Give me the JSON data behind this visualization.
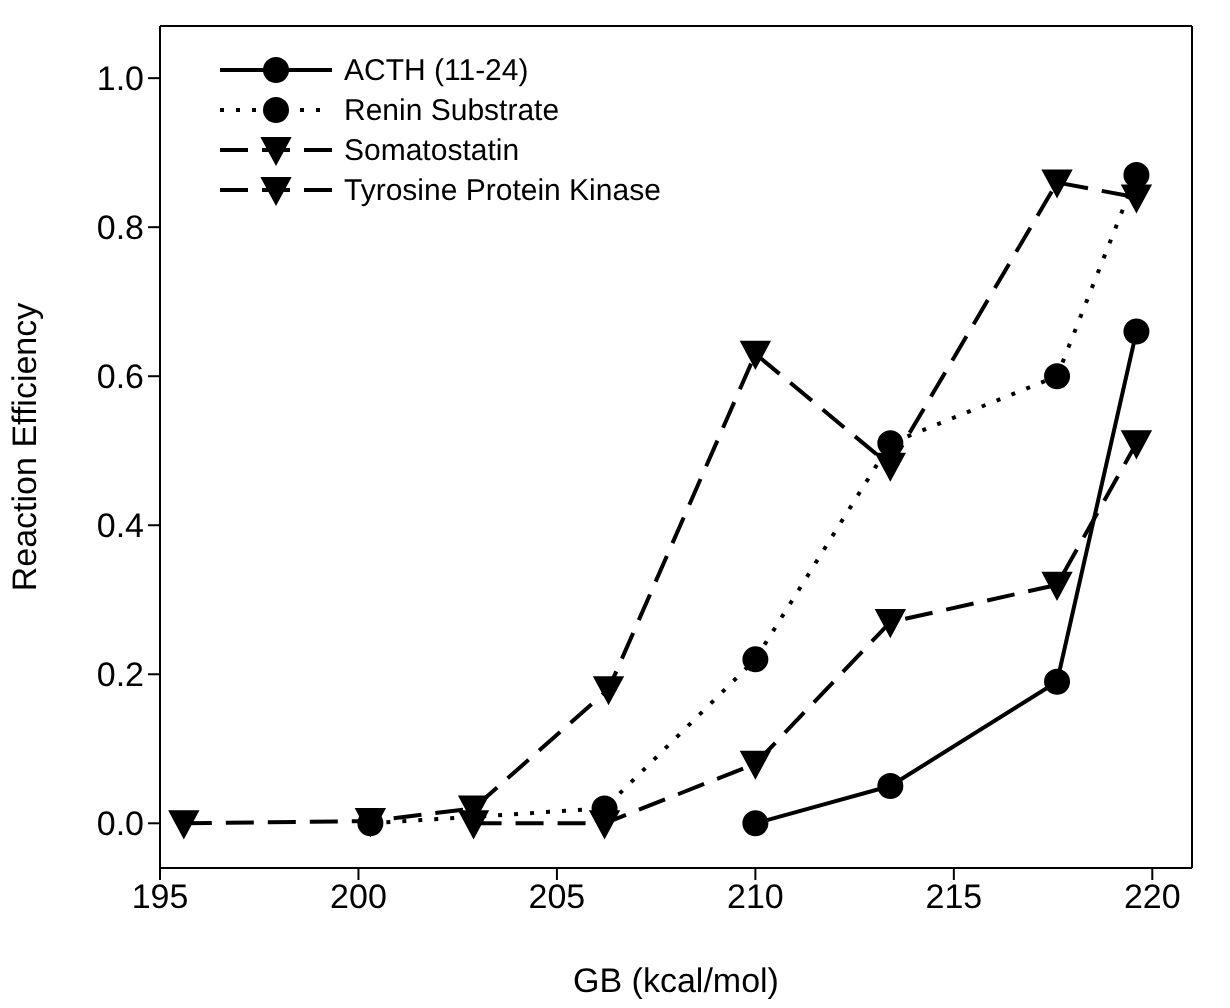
{
  "chart_data": {
    "type": "line",
    "xlabel": "GB (kcal/mol)",
    "ylabel": "Reaction Efficiency",
    "xlim": [
      195,
      221
    ],
    "ylim": [
      -0.06,
      1.07
    ],
    "xticks": [
      195,
      200,
      205,
      210,
      215,
      220
    ],
    "yticks": [
      {
        "value": 0,
        "label": "0.0"
      },
      0.2,
      0.4,
      0.6,
      0.8,
      {
        "value": 1,
        "label": "1.0"
      }
    ],
    "legend": "top left",
    "series": [
      {
        "name": "ACTH (11-24)",
        "color": "#000000",
        "marker": "circle",
        "line_style": "solid",
        "x": [
          210.0,
          213.4,
          217.6,
          219.6
        ],
        "values": [
          0.0,
          0.05,
          0.19,
          0.66
        ]
      },
      {
        "name": "Renin Substrate",
        "color": "#000000",
        "marker": "circle",
        "line_style": "dotted",
        "x": [
          200.3,
          206.2,
          210.0,
          213.4,
          217.6,
          219.6
        ],
        "values": [
          0.0,
          0.02,
          0.22,
          0.51,
          0.6,
          0.87
        ]
      },
      {
        "name": "Somatostatin",
        "color": "#000000",
        "marker": "triangle",
        "line_style": "dashed",
        "x": [
          195.6,
          200.3,
          202.9,
          206.3,
          210.0,
          213.4,
          217.6,
          219.6
        ],
        "values": [
          0.0,
          0.003,
          0.02,
          0.18,
          0.63,
          0.48,
          0.86,
          0.84
        ]
      },
      {
        "name": "Tyrosine Protein Kinase",
        "color": "#000000",
        "marker": "triangle",
        "line_style": "dashed",
        "x": [
          202.9,
          206.2,
          210.0,
          213.4,
          217.6,
          219.6
        ],
        "values": [
          0.0,
          0.0,
          0.08,
          0.27,
          0.32,
          0.51
        ]
      }
    ]
  }
}
